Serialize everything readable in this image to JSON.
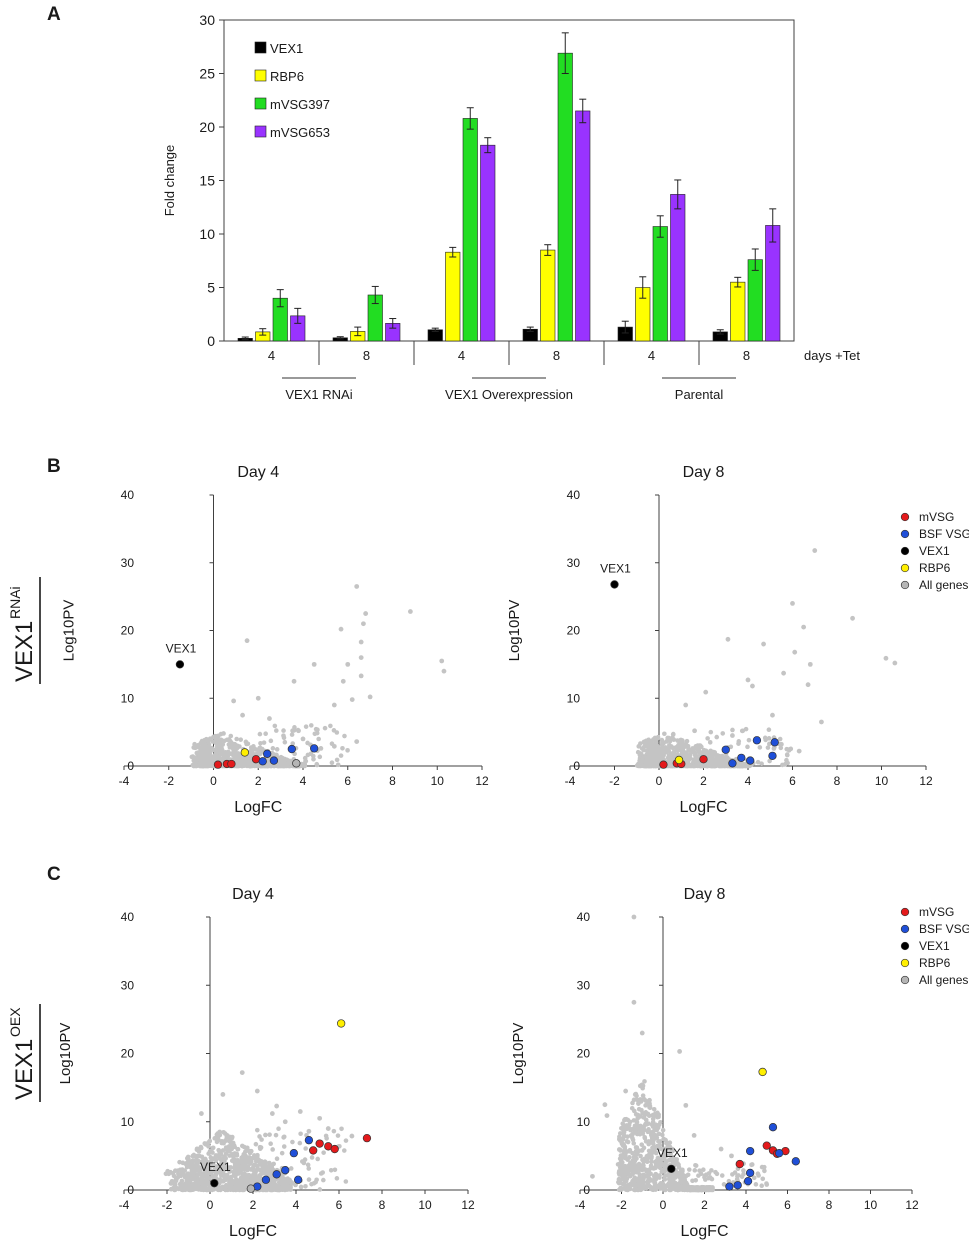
{
  "panel_labels": {
    "a": "A",
    "b": "B",
    "c": "C"
  },
  "row_labels": {
    "rnai_main": "VEX1",
    "rnai_sup": "RNAi",
    "oex_main": "VEX1",
    "oex_sup": "OEX"
  },
  "chart_data": [
    {
      "id": "A",
      "type": "bar",
      "ylabel": "Fold change",
      "ylim": [
        0,
        30
      ],
      "yticks": [
        "0",
        "5",
        "10",
        "15",
        "20",
        "25",
        "30"
      ],
      "categories": [
        "4",
        "8",
        "4",
        "8",
        "4",
        "8"
      ],
      "xlabel": "days +Tet",
      "groups": [
        "VEX1 RNAi",
        "VEX1 Overexpression",
        "Parental"
      ],
      "colors": [
        "#000000",
        "#ffff00",
        "#22dd22",
        "#9933ff"
      ],
      "series": [
        {
          "name": "VEX1",
          "values": [
            0.25,
            0.3,
            1.05,
            1.1,
            1.3,
            0.85
          ],
          "errors": [
            0.12,
            0.1,
            0.15,
            0.2,
            0.55,
            0.2
          ]
        },
        {
          "name": "RBP6",
          "values": [
            0.85,
            0.9,
            8.3,
            8.5,
            5.0,
            5.5
          ],
          "errors": [
            0.3,
            0.4,
            0.45,
            0.5,
            1.0,
            0.45
          ]
        },
        {
          "name": "mVSG397",
          "values": [
            4.0,
            4.3,
            20.8,
            26.9,
            10.7,
            7.6
          ],
          "errors": [
            0.8,
            0.8,
            1.0,
            1.9,
            1.0,
            1.0
          ]
        },
        {
          "name": "mVSG653",
          "values": [
            2.35,
            1.65,
            18.3,
            21.5,
            13.7,
            10.8
          ],
          "errors": [
            0.7,
            0.45,
            0.7,
            1.1,
            1.35,
            1.55
          ]
        }
      ]
    },
    {
      "id": "B-day4",
      "type": "scatter",
      "title": "Day 4",
      "xlabel": "LogFC",
      "ylabel": "Log10PV",
      "xlim": [
        -4,
        12
      ],
      "ylim": [
        0,
        40
      ],
      "xticks": [
        "-4",
        "-2",
        "0",
        "2",
        "4",
        "6",
        "8",
        "10",
        "12"
      ],
      "yticks": [
        "0",
        "10",
        "20",
        "30",
        "40"
      ],
      "cloud_seed": 11,
      "background": [
        [
          6.4,
          26.5
        ],
        [
          8.8,
          22.8
        ],
        [
          6.8,
          22.5
        ],
        [
          6.7,
          21.0
        ],
        [
          10.2,
          15.5
        ],
        [
          10.3,
          14.0
        ],
        [
          1.5,
          18.5
        ],
        [
          5.7,
          20.2
        ],
        [
          6.6,
          18.3
        ],
        [
          4.5,
          15.0
        ],
        [
          6.0,
          15.0
        ],
        [
          6.6,
          16.0
        ],
        [
          7.0,
          10.2
        ],
        [
          6.2,
          9.8
        ],
        [
          5.4,
          9.0
        ],
        [
          5.8,
          12.5
        ],
        [
          2.5,
          7.0
        ],
        [
          3.6,
          12.5
        ],
        [
          2.0,
          10.0
        ],
        [
          4.8,
          2.6
        ],
        [
          5.4,
          2.9
        ],
        [
          6.4,
          3.6
        ],
        [
          3.8,
          5.2
        ],
        [
          4.0,
          4.0
        ],
        [
          0.9,
          9.6
        ],
        [
          1.3,
          7.5
        ],
        [
          6.6,
          13.3
        ]
      ],
      "highlighted": [
        {
          "name": "mVSG",
          "color": "#e41a1c",
          "points": [
            [
              0.2,
              0.2
            ],
            [
              0.6,
              0.3
            ],
            [
              0.8,
              0.3
            ],
            [
              1.9,
              1.0
            ]
          ]
        },
        {
          "name": "BSF VSG",
          "color": "#1f4fd8",
          "points": [
            [
              2.2,
              0.7
            ],
            [
              2.4,
              1.8
            ],
            [
              2.7,
              0.8
            ],
            [
              3.5,
              2.5
            ],
            [
              4.5,
              2.6
            ]
          ]
        },
        {
          "name": "VEX1",
          "color": "#000000",
          "points": [
            [
              -1.5,
              15.0
            ]
          ]
        },
        {
          "name": "RBP6",
          "color": "#ffef00",
          "points": [
            [
              1.4,
              2.0
            ]
          ]
        },
        {
          "name": "All genes",
          "color": "#b5b5b5",
          "points": [
            [
              3.7,
              0.4
            ]
          ]
        }
      ],
      "annotations": [
        {
          "text": "VEX1",
          "x": -1.5,
          "y": 15.0
        }
      ]
    },
    {
      "id": "B-day8",
      "type": "scatter",
      "title": "Day 8",
      "xlabel": "LogFC",
      "ylabel": "Log10PV",
      "xlim": [
        -4,
        12
      ],
      "ylim": [
        0,
        40
      ],
      "xticks": [
        "-4",
        "-2",
        "0",
        "2",
        "4",
        "6",
        "8",
        "10",
        "12"
      ],
      "yticks": [
        "0",
        "10",
        "20",
        "30",
        "40"
      ],
      "cloud_seed": 23,
      "background": [
        [
          7.0,
          31.8
        ],
        [
          6.0,
          24.0
        ],
        [
          6.5,
          20.5
        ],
        [
          8.7,
          21.8
        ],
        [
          3.1,
          18.7
        ],
        [
          4.7,
          18.0
        ],
        [
          6.8,
          15.0
        ],
        [
          10.2,
          15.9
        ],
        [
          10.6,
          15.2
        ],
        [
          5.6,
          13.7
        ],
        [
          6.1,
          16.8
        ],
        [
          4.0,
          12.7
        ],
        [
          7.3,
          6.5
        ],
        [
          1.2,
          9.0
        ],
        [
          3.3,
          4.5
        ],
        [
          2.1,
          10.9
        ],
        [
          6.7,
          12.0
        ],
        [
          5.1,
          7.5
        ],
        [
          4.2,
          11.8
        ],
        [
          5.5,
          3.2
        ],
        [
          6.3,
          2.2
        ],
        [
          1.6,
          5.2
        ]
      ],
      "highlighted": [
        {
          "name": "mVSG",
          "color": "#e41a1c",
          "points": [
            [
              0.2,
              0.2
            ],
            [
              0.8,
              0.4
            ],
            [
              1.0,
              0.3
            ],
            [
              2.0,
              1.0
            ]
          ]
        },
        {
          "name": "BSF VSG",
          "color": "#1f4fd8",
          "points": [
            [
              3.0,
              2.4
            ],
            [
              3.3,
              0.4
            ],
            [
              3.7,
              1.2
            ],
            [
              4.1,
              0.8
            ],
            [
              4.4,
              3.8
            ],
            [
              5.1,
              1.5
            ],
            [
              5.2,
              3.5
            ]
          ]
        },
        {
          "name": "VEX1",
          "color": "#000000",
          "points": [
            [
              -2.0,
              26.8
            ]
          ]
        },
        {
          "name": "RBP6",
          "color": "#ffef00",
          "points": [
            [
              0.9,
              0.9
            ]
          ]
        },
        {
          "name": "All genes",
          "color": "#b5b5b5",
          "points": []
        }
      ],
      "annotations": [
        {
          "text": "VEX1",
          "x": -2.0,
          "y": 26.8
        }
      ],
      "legend": [
        "mVSG",
        "BSF VSG",
        "VEX1",
        "RBP6",
        "All genes"
      ]
    },
    {
      "id": "C-day4",
      "type": "scatter",
      "title": "Day 4",
      "xlabel": "LogFC",
      "ylabel": "Log10PV",
      "xlim": [
        -4,
        12
      ],
      "ylim": [
        0,
        40
      ],
      "xticks": [
        "-4",
        "-2",
        "0",
        "2",
        "4",
        "6",
        "8",
        "10",
        "12"
      ],
      "yticks": [
        "0",
        "10",
        "20",
        "30",
        "40"
      ],
      "cloud_seed": 37,
      "background": [
        [
          1.5,
          17.2
        ],
        [
          2.2,
          14.5
        ],
        [
          4.2,
          11.5
        ],
        [
          3.5,
          10.0
        ],
        [
          5.5,
          9.0
        ],
        [
          2.9,
          11.2
        ],
        [
          4.6,
          8.6
        ],
        [
          6.6,
          7.9
        ],
        [
          0.6,
          14.0
        ],
        [
          5.1,
          10.5
        ],
        [
          -0.4,
          11.2
        ],
        [
          3.1,
          12.3
        ]
      ],
      "highlighted": [
        {
          "name": "mVSG",
          "color": "#e41a1c",
          "points": [
            [
              4.8,
              5.8
            ],
            [
              5.1,
              6.8
            ],
            [
              5.5,
              6.4
            ],
            [
              5.8,
              6.0
            ],
            [
              7.3,
              7.6
            ]
          ]
        },
        {
          "name": "BSF VSG",
          "color": "#1f4fd8",
          "points": [
            [
              2.2,
              0.5
            ],
            [
              2.6,
              1.5
            ],
            [
              3.1,
              2.3
            ],
            [
              3.5,
              2.9
            ],
            [
              3.9,
              5.4
            ],
            [
              4.1,
              1.5
            ],
            [
              4.6,
              7.3
            ]
          ]
        },
        {
          "name": "VEX1",
          "color": "#000000",
          "points": [
            [
              0.2,
              1.0
            ]
          ]
        },
        {
          "name": "RBP6",
          "color": "#ffef00",
          "points": [
            [
              6.1,
              24.4
            ]
          ]
        },
        {
          "name": "All genes",
          "color": "#b5b5b5",
          "points": [
            [
              1.9,
              0.2
            ]
          ]
        }
      ],
      "annotations": [
        {
          "text": "VEX1",
          "x": 0.2,
          "y": 1.0
        }
      ]
    },
    {
      "id": "C-day8",
      "type": "scatter",
      "title": "Day 8",
      "xlabel": "LogFC",
      "ylabel": "Log10PV",
      "xlim": [
        -4,
        12
      ],
      "ylim": [
        0,
        40
      ],
      "xticks": [
        "-4",
        "-2",
        "0",
        "2",
        "4",
        "6",
        "8",
        "10",
        "12"
      ],
      "yticks": [
        "0",
        "10",
        "20",
        "30",
        "40"
      ],
      "cloud_seed": 53,
      "background": [
        [
          -1.4,
          40.0
        ],
        [
          -1.4,
          27.5
        ],
        [
          -1.0,
          23.0
        ],
        [
          0.8,
          20.3
        ],
        [
          -2.8,
          12.5
        ],
        [
          -2.7,
          10.9
        ],
        [
          -3.4,
          2.0
        ],
        [
          1.5,
          8.0
        ],
        [
          2.8,
          6.0
        ],
        [
          3.3,
          5.0
        ],
        [
          -1.8,
          14.5
        ],
        [
          1.1,
          12.4
        ]
      ],
      "highlighted": [
        {
          "name": "mVSG",
          "color": "#e41a1c",
          "points": [
            [
              3.7,
              3.8
            ],
            [
              5.0,
              6.5
            ],
            [
              5.3,
              5.8
            ],
            [
              5.5,
              5.3
            ],
            [
              5.9,
              5.7
            ]
          ]
        },
        {
          "name": "BSF VSG",
          "color": "#1f4fd8",
          "points": [
            [
              3.2,
              0.5
            ],
            [
              3.6,
              0.7
            ],
            [
              4.1,
              1.3
            ],
            [
              4.2,
              2.5
            ],
            [
              4.2,
              5.7
            ],
            [
              5.3,
              9.2
            ],
            [
              5.6,
              5.4
            ],
            [
              6.4,
              4.2
            ]
          ]
        },
        {
          "name": "VEX1",
          "color": "#000000",
          "points": [
            [
              0.4,
              3.1
            ]
          ]
        },
        {
          "name": "RBP6",
          "color": "#ffef00",
          "points": [
            [
              4.8,
              17.3
            ]
          ]
        },
        {
          "name": "All genes",
          "color": "#b5b5b5",
          "points": []
        }
      ],
      "annotations": [
        {
          "text": "VEX1",
          "x": 0.4,
          "y": 3.1
        }
      ],
      "legend": [
        "mVSG",
        "BSF VSG",
        "VEX1",
        "RBP6",
        "All genes"
      ]
    }
  ]
}
